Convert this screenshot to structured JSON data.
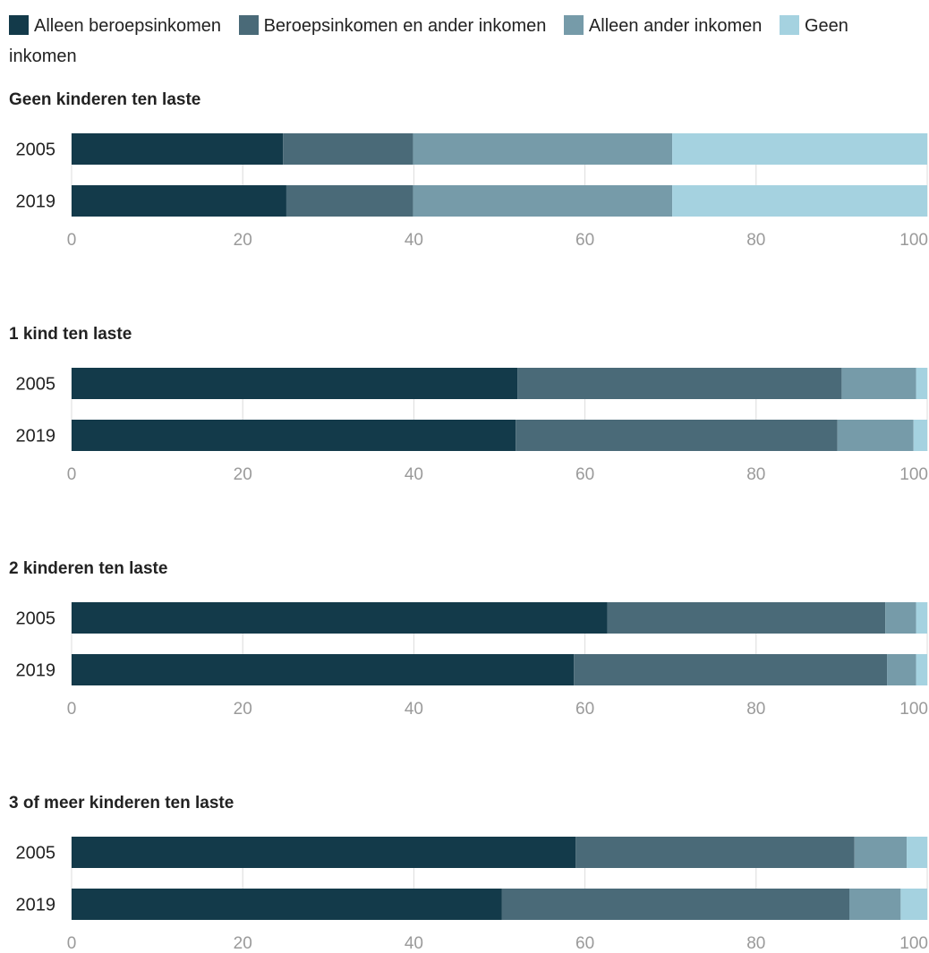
{
  "legend": [
    {
      "label": "Alleen beroepsinkomen",
      "color": "#133a4a"
    },
    {
      "label": "Beroepsinkomen en ander inkomen",
      "color": "#4a6a78"
    },
    {
      "label": "Alleen ander inkomen",
      "color": "#769ba9"
    },
    {
      "label": "Geen inkomen",
      "color": "#a5d2e0"
    }
  ],
  "chart_data": [
    {
      "type": "bar",
      "orientation": "horizontal",
      "stacked": true,
      "title": "Geen kinderen ten laste",
      "categories": [
        "2005",
        "2019"
      ],
      "xlim": [
        0,
        100
      ],
      "ticks": [
        0,
        20,
        40,
        60,
        80,
        100
      ],
      "series": [
        {
          "name": "Alleen beroepsinkomen",
          "values": [
            24.7,
            25.1
          ]
        },
        {
          "name": "Beroepsinkomen en ander inkomen",
          "values": [
            15.2,
            14.8
          ]
        },
        {
          "name": "Alleen ander inkomen",
          "values": [
            30.3,
            30.3
          ]
        },
        {
          "name": "Geen inkomen",
          "values": [
            29.8,
            29.8
          ]
        }
      ]
    },
    {
      "type": "bar",
      "orientation": "horizontal",
      "stacked": true,
      "title": "1 kind ten laste",
      "categories": [
        "2005",
        "2019"
      ],
      "xlim": [
        0,
        100
      ],
      "ticks": [
        0,
        20,
        40,
        60,
        80,
        100
      ],
      "series": [
        {
          "name": "Alleen beroepsinkomen",
          "values": [
            52.1,
            51.9
          ]
        },
        {
          "name": "Beroepsinkomen en ander inkomen",
          "values": [
            37.9,
            37.6
          ]
        },
        {
          "name": "Alleen ander inkomen",
          "values": [
            8.7,
            8.9
          ]
        },
        {
          "name": "Geen inkomen",
          "values": [
            1.3,
            1.6
          ]
        }
      ]
    },
    {
      "type": "bar",
      "orientation": "horizontal",
      "stacked": true,
      "title": "2 kinderen ten laste",
      "categories": [
        "2005",
        "2019"
      ],
      "xlim": [
        0,
        100
      ],
      "ticks": [
        0,
        20,
        40,
        60,
        80,
        100
      ],
      "series": [
        {
          "name": "Alleen beroepsinkomen",
          "values": [
            62.6,
            58.7
          ]
        },
        {
          "name": "Beroepsinkomen en ander inkomen",
          "values": [
            32.5,
            36.6
          ]
        },
        {
          "name": "Alleen ander inkomen",
          "values": [
            3.6,
            3.4
          ]
        },
        {
          "name": "Geen inkomen",
          "values": [
            1.3,
            1.3
          ]
        }
      ]
    },
    {
      "type": "bar",
      "orientation": "horizontal",
      "stacked": true,
      "title": "3 of meer kinderen ten laste",
      "categories": [
        "2005",
        "2019"
      ],
      "xlim": [
        0,
        100
      ],
      "ticks": [
        0,
        20,
        40,
        60,
        80,
        100
      ],
      "series": [
        {
          "name": "Alleen beroepsinkomen",
          "values": [
            58.9,
            50.3
          ]
        },
        {
          "name": "Beroepsinkomen en ander inkomen",
          "values": [
            32.6,
            40.6
          ]
        },
        {
          "name": "Alleen ander inkomen",
          "values": [
            6.1,
            6.0
          ]
        },
        {
          "name": "Geen inkomen",
          "values": [
            2.4,
            3.1
          ]
        }
      ]
    }
  ]
}
